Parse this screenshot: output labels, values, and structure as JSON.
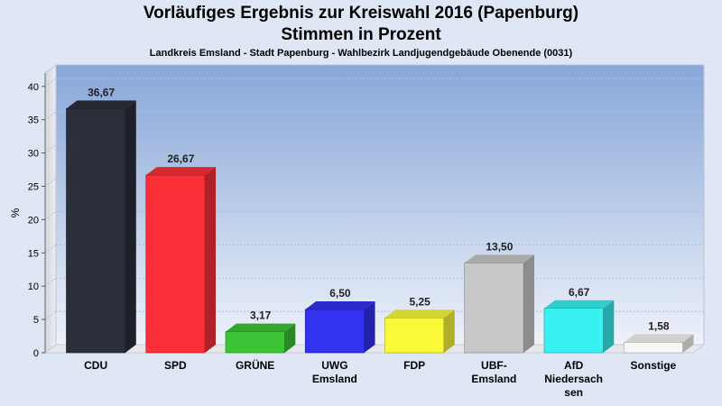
{
  "chart_data": {
    "type": "bar",
    "title": "Vorläufiges Ergebnis zur Kreiswahl 2016 (Papenburg)",
    "title2": "Stimmen in Prozent",
    "subtitle": "Landkreis Emsland - Stadt Papenburg - Wahlbezirk Landjugendgebäude Obenende (0031)",
    "ylabel": "%",
    "ylim": [
      0,
      42
    ],
    "yticks": [
      0,
      5,
      10,
      15,
      20,
      25,
      30,
      35,
      40
    ],
    "grid": true,
    "categories": [
      [
        "CDU"
      ],
      [
        "SPD"
      ],
      [
        "GRÜNE"
      ],
      [
        "UWG",
        "Emsland"
      ],
      [
        "FDP"
      ],
      [
        "UBF-",
        "Emsland"
      ],
      [
        "AfD",
        "Niedersach",
        "sen"
      ],
      [
        "Sonstige"
      ]
    ],
    "values": [
      36.67,
      26.67,
      3.17,
      6.5,
      5.25,
      13.5,
      6.67,
      1.58
    ],
    "value_labels": [
      "36,67",
      "26,67",
      "3,17",
      "6,50",
      "5,25",
      "13,50",
      "6,67",
      "1,58"
    ],
    "colors": [
      "#2b2f3a",
      "#fa2f37",
      "#3cc436",
      "#3232f0",
      "#fafa3a",
      "#c8c8c8",
      "#38f2f2",
      "#f6f6f6"
    ]
  }
}
